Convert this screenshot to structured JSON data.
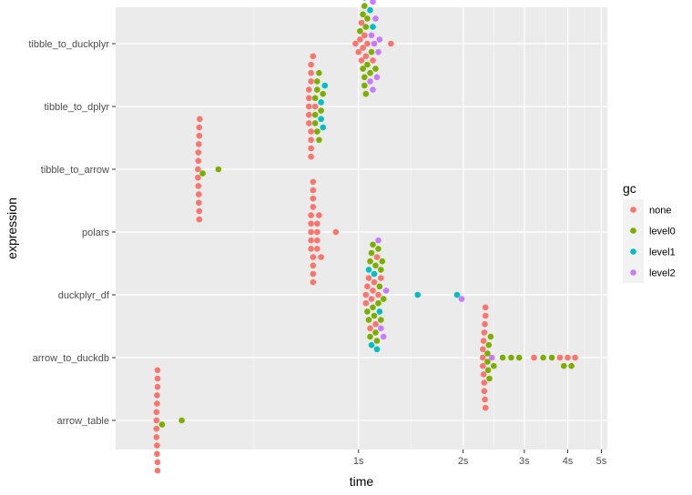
{
  "chart_data": {
    "type": "scatter",
    "style": "beeswarm",
    "xlabel": "time",
    "ylabel": "expression",
    "x_scale": "log",
    "x_unit": "seconds",
    "xlim": [
      0.2,
      5.2
    ],
    "x_ticks": [
      {
        "value": 1,
        "label": "1s"
      },
      {
        "value": 2,
        "label": "2s"
      },
      {
        "value": 3,
        "label": "3s"
      },
      {
        "value": 4,
        "label": "4s"
      },
      {
        "value": 5,
        "label": "5s"
      }
    ],
    "categories": [
      "tibble_to_duckplyr",
      "tibble_to_dplyr",
      "tibble_to_arrow",
      "polars",
      "duckplyr_df",
      "arrow_to_duckdb",
      "arrow_table"
    ],
    "grid": true,
    "legend": {
      "title": "gc",
      "position": "right",
      "entries": [
        {
          "name": "none",
          "color": "#F8766D"
        },
        {
          "name": "level0",
          "color": "#7CAE00"
        },
        {
          "name": "level1",
          "color": "#00BFC4"
        },
        {
          "name": "level2",
          "color": "#C77CFF"
        }
      ]
    },
    "series": [
      {
        "category": "tibble_to_duckplyr",
        "points": [
          {
            "x": 1.01,
            "gc": "none"
          },
          {
            "x": 1.02,
            "gc": "none"
          },
          {
            "x": 1.04,
            "gc": "none"
          },
          {
            "x": 1.05,
            "gc": "none"
          },
          {
            "x": 1.06,
            "gc": "none"
          },
          {
            "x": 1.03,
            "gc": "none"
          },
          {
            "x": 1.0,
            "gc": "none"
          },
          {
            "x": 0.98,
            "gc": "none"
          },
          {
            "x": 1.07,
            "gc": "none"
          },
          {
            "x": 1.1,
            "gc": "none"
          },
          {
            "x": 1.24,
            "gc": "none"
          },
          {
            "x": 1.02,
            "gc": "none"
          },
          {
            "x": 1.03,
            "gc": "level0"
          },
          {
            "x": 1.04,
            "gc": "level0"
          },
          {
            "x": 1.05,
            "gc": "level0"
          },
          {
            "x": 1.06,
            "gc": "level0"
          },
          {
            "x": 1.07,
            "gc": "level0"
          },
          {
            "x": 1.01,
            "gc": "level0"
          },
          {
            "x": 1.08,
            "gc": "level0"
          },
          {
            "x": 1.04,
            "gc": "level0"
          },
          {
            "x": 1.05,
            "gc": "level0"
          },
          {
            "x": 1.09,
            "gc": "level0"
          },
          {
            "x": 1.12,
            "gc": "level0"
          },
          {
            "x": 1.03,
            "gc": "level0"
          },
          {
            "x": 1.06,
            "gc": "level0"
          },
          {
            "x": 1.04,
            "gc": "level0"
          },
          {
            "x": 1.05,
            "gc": "level1"
          },
          {
            "x": 1.06,
            "gc": "level1"
          },
          {
            "x": 1.07,
            "gc": "level1"
          },
          {
            "x": 1.08,
            "gc": "level1"
          },
          {
            "x": 1.04,
            "gc": "level1"
          },
          {
            "x": 1.1,
            "gc": "level1"
          },
          {
            "x": 1.08,
            "gc": "level2"
          },
          {
            "x": 1.1,
            "gc": "level2"
          },
          {
            "x": 1.12,
            "gc": "level2"
          },
          {
            "x": 1.14,
            "gc": "level2"
          },
          {
            "x": 1.09,
            "gc": "level2"
          },
          {
            "x": 1.11,
            "gc": "level2"
          },
          {
            "x": 1.07,
            "gc": "level2"
          },
          {
            "x": 1.13,
            "gc": "level2"
          },
          {
            "x": 1.15,
            "gc": "level2"
          },
          {
            "x": 1.1,
            "gc": "level2"
          }
        ]
      },
      {
        "category": "tibble_to_dplyr",
        "points": [
          {
            "x": 0.72,
            "gc": "none"
          },
          {
            "x": 0.73,
            "gc": "none"
          },
          {
            "x": 0.74,
            "gc": "none"
          },
          {
            "x": 0.72,
            "gc": "none"
          },
          {
            "x": 0.73,
            "gc": "none"
          },
          {
            "x": 0.74,
            "gc": "none"
          },
          {
            "x": 0.75,
            "gc": "none"
          },
          {
            "x": 0.72,
            "gc": "none"
          },
          {
            "x": 0.73,
            "gc": "none"
          },
          {
            "x": 0.74,
            "gc": "none"
          },
          {
            "x": 0.73,
            "gc": "none"
          },
          {
            "x": 0.72,
            "gc": "none"
          },
          {
            "x": 0.74,
            "gc": "none"
          },
          {
            "x": 0.73,
            "gc": "none"
          },
          {
            "x": 0.72,
            "gc": "none"
          },
          {
            "x": 0.73,
            "gc": "none"
          },
          {
            "x": 0.74,
            "gc": "none"
          },
          {
            "x": 0.73,
            "gc": "none"
          },
          {
            "x": 0.75,
            "gc": "level0"
          },
          {
            "x": 0.76,
            "gc": "level0"
          },
          {
            "x": 0.77,
            "gc": "level0"
          },
          {
            "x": 0.75,
            "gc": "level0"
          },
          {
            "x": 0.76,
            "gc": "level0"
          },
          {
            "x": 0.78,
            "gc": "level0"
          },
          {
            "x": 0.77,
            "gc": "level0"
          },
          {
            "x": 0.75,
            "gc": "level0"
          },
          {
            "x": 0.79,
            "gc": "level0"
          },
          {
            "x": 0.76,
            "gc": "level0"
          },
          {
            "x": 0.78,
            "gc": "level1"
          },
          {
            "x": 0.79,
            "gc": "level1"
          },
          {
            "x": 0.8,
            "gc": "level1"
          },
          {
            "x": 0.78,
            "gc": "level1"
          }
        ]
      },
      {
        "category": "tibble_to_arrow",
        "points": [
          {
            "x": 0.345,
            "gc": "none"
          },
          {
            "x": 0.348,
            "gc": "none"
          },
          {
            "x": 0.35,
            "gc": "none"
          },
          {
            "x": 0.346,
            "gc": "none"
          },
          {
            "x": 0.349,
            "gc": "none"
          },
          {
            "x": 0.351,
            "gc": "none"
          },
          {
            "x": 0.347,
            "gc": "none"
          },
          {
            "x": 0.352,
            "gc": "none"
          },
          {
            "x": 0.345,
            "gc": "none"
          },
          {
            "x": 0.349,
            "gc": "none"
          },
          {
            "x": 0.35,
            "gc": "none"
          },
          {
            "x": 0.348,
            "gc": "none"
          },
          {
            "x": 0.346,
            "gc": "none"
          },
          {
            "x": 0.351,
            "gc": "none"
          },
          {
            "x": 0.347,
            "gc": "none"
          },
          {
            "x": 0.349,
            "gc": "none"
          },
          {
            "x": 0.352,
            "gc": "none"
          },
          {
            "x": 0.348,
            "gc": "none"
          },
          {
            "x": 0.35,
            "gc": "none"
          },
          {
            "x": 0.346,
            "gc": "none"
          },
          {
            "x": 0.349,
            "gc": "none"
          },
          {
            "x": 0.347,
            "gc": "none"
          },
          {
            "x": 0.351,
            "gc": "none"
          },
          {
            "x": 0.348,
            "gc": "none"
          },
          {
            "x": 0.356,
            "gc": "level0"
          },
          {
            "x": 0.395,
            "gc": "level0"
          }
        ]
      },
      {
        "category": "polars",
        "points": [
          {
            "x": 0.73,
            "gc": "none"
          },
          {
            "x": 0.74,
            "gc": "none"
          },
          {
            "x": 0.75,
            "gc": "none"
          },
          {
            "x": 0.73,
            "gc": "none"
          },
          {
            "x": 0.74,
            "gc": "none"
          },
          {
            "x": 0.76,
            "gc": "none"
          },
          {
            "x": 0.75,
            "gc": "none"
          },
          {
            "x": 0.73,
            "gc": "none"
          },
          {
            "x": 0.74,
            "gc": "none"
          },
          {
            "x": 0.75,
            "gc": "none"
          },
          {
            "x": 0.76,
            "gc": "none"
          },
          {
            "x": 0.74,
            "gc": "none"
          },
          {
            "x": 0.73,
            "gc": "none"
          },
          {
            "x": 0.75,
            "gc": "none"
          },
          {
            "x": 0.74,
            "gc": "none"
          },
          {
            "x": 0.76,
            "gc": "none"
          },
          {
            "x": 0.77,
            "gc": "none"
          },
          {
            "x": 0.74,
            "gc": "none"
          },
          {
            "x": 0.75,
            "gc": "none"
          },
          {
            "x": 0.73,
            "gc": "none"
          },
          {
            "x": 0.74,
            "gc": "none"
          },
          {
            "x": 0.75,
            "gc": "none"
          },
          {
            "x": 0.76,
            "gc": "none"
          },
          {
            "x": 0.78,
            "gc": "none"
          },
          {
            "x": 0.75,
            "gc": "none"
          },
          {
            "x": 0.74,
            "gc": "none"
          },
          {
            "x": 0.86,
            "gc": "none"
          }
        ]
      },
      {
        "category": "duckplyr_df",
        "points": [
          {
            "x": 1.05,
            "gc": "none"
          },
          {
            "x": 1.06,
            "gc": "none"
          },
          {
            "x": 1.08,
            "gc": "none"
          },
          {
            "x": 1.1,
            "gc": "none"
          },
          {
            "x": 1.07,
            "gc": "none"
          },
          {
            "x": 1.12,
            "gc": "none"
          },
          {
            "x": 1.14,
            "gc": "none"
          },
          {
            "x": 1.09,
            "gc": "none"
          },
          {
            "x": 1.11,
            "gc": "none"
          },
          {
            "x": 1.16,
            "gc": "none"
          },
          {
            "x": 1.05,
            "gc": "none"
          },
          {
            "x": 1.13,
            "gc": "none"
          },
          {
            "x": 1.06,
            "gc": "level0"
          },
          {
            "x": 1.08,
            "gc": "level0"
          },
          {
            "x": 1.1,
            "gc": "level0"
          },
          {
            "x": 1.12,
            "gc": "level0"
          },
          {
            "x": 1.14,
            "gc": "level0"
          },
          {
            "x": 1.16,
            "gc": "level0"
          },
          {
            "x": 1.11,
            "gc": "level0"
          },
          {
            "x": 1.09,
            "gc": "level0"
          },
          {
            "x": 1.13,
            "gc": "level0"
          },
          {
            "x": 1.18,
            "gc": "level0"
          },
          {
            "x": 1.15,
            "gc": "level0"
          },
          {
            "x": 1.07,
            "gc": "level0"
          },
          {
            "x": 1.12,
            "gc": "level0"
          },
          {
            "x": 1.17,
            "gc": "level0"
          },
          {
            "x": 1.1,
            "gc": "level0"
          },
          {
            "x": 1.14,
            "gc": "level0"
          },
          {
            "x": 1.08,
            "gc": "level0"
          },
          {
            "x": 1.16,
            "gc": "level0"
          },
          {
            "x": 1.09,
            "gc": "level1"
          },
          {
            "x": 1.11,
            "gc": "level1"
          },
          {
            "x": 1.13,
            "gc": "level1"
          },
          {
            "x": 1.15,
            "gc": "level1"
          },
          {
            "x": 1.07,
            "gc": "level1"
          },
          {
            "x": 1.12,
            "gc": "level1"
          },
          {
            "x": 1.48,
            "gc": "level1"
          },
          {
            "x": 1.92,
            "gc": "level1"
          },
          {
            "x": 1.1,
            "gc": "level2"
          },
          {
            "x": 1.12,
            "gc": "level2"
          },
          {
            "x": 1.14,
            "gc": "level2"
          },
          {
            "x": 1.16,
            "gc": "level2"
          },
          {
            "x": 1.18,
            "gc": "level2"
          },
          {
            "x": 1.2,
            "gc": "level2"
          },
          {
            "x": 1.13,
            "gc": "level2"
          },
          {
            "x": 1.98,
            "gc": "level2"
          }
        ]
      },
      {
        "category": "arrow_to_duckdb",
        "points": [
          {
            "x": 2.28,
            "gc": "none"
          },
          {
            "x": 2.3,
            "gc": "none"
          },
          {
            "x": 2.32,
            "gc": "none"
          },
          {
            "x": 2.29,
            "gc": "none"
          },
          {
            "x": 2.31,
            "gc": "none"
          },
          {
            "x": 2.33,
            "gc": "none"
          },
          {
            "x": 2.28,
            "gc": "none"
          },
          {
            "x": 2.3,
            "gc": "none"
          },
          {
            "x": 2.32,
            "gc": "none"
          },
          {
            "x": 2.29,
            "gc": "none"
          },
          {
            "x": 2.31,
            "gc": "none"
          },
          {
            "x": 2.34,
            "gc": "none"
          },
          {
            "x": 2.3,
            "gc": "none"
          },
          {
            "x": 2.28,
            "gc": "none"
          },
          {
            "x": 2.32,
            "gc": "none"
          },
          {
            "x": 3.2,
            "gc": "none"
          },
          {
            "x": 3.8,
            "gc": "none"
          },
          {
            "x": 4.0,
            "gc": "none"
          },
          {
            "x": 4.2,
            "gc": "none"
          },
          {
            "x": 2.33,
            "gc": "level0"
          },
          {
            "x": 2.36,
            "gc": "level0"
          },
          {
            "x": 2.38,
            "gc": "level0"
          },
          {
            "x": 2.34,
            "gc": "level0"
          },
          {
            "x": 2.4,
            "gc": "level0"
          },
          {
            "x": 2.35,
            "gc": "level0"
          },
          {
            "x": 2.37,
            "gc": "level0"
          },
          {
            "x": 2.45,
            "gc": "level0"
          },
          {
            "x": 2.6,
            "gc": "level0"
          },
          {
            "x": 2.75,
            "gc": "level0"
          },
          {
            "x": 2.9,
            "gc": "level0"
          },
          {
            "x": 3.4,
            "gc": "level0"
          },
          {
            "x": 3.6,
            "gc": "level0"
          },
          {
            "x": 3.9,
            "gc": "level0"
          },
          {
            "x": 4.1,
            "gc": "level0"
          },
          {
            "x": 2.35,
            "gc": "level0"
          },
          {
            "x": 2.42,
            "gc": "level2"
          }
        ]
      },
      {
        "category": "arrow_table",
        "points": [
          {
            "x": 0.262,
            "gc": "none"
          },
          {
            "x": 0.264,
            "gc": "none"
          },
          {
            "x": 0.266,
            "gc": "none"
          },
          {
            "x": 0.263,
            "gc": "none"
          },
          {
            "x": 0.265,
            "gc": "none"
          },
          {
            "x": 0.267,
            "gc": "none"
          },
          {
            "x": 0.262,
            "gc": "none"
          },
          {
            "x": 0.264,
            "gc": "none"
          },
          {
            "x": 0.266,
            "gc": "none"
          },
          {
            "x": 0.263,
            "gc": "none"
          },
          {
            "x": 0.265,
            "gc": "none"
          },
          {
            "x": 0.268,
            "gc": "none"
          },
          {
            "x": 0.264,
            "gc": "none"
          },
          {
            "x": 0.262,
            "gc": "none"
          },
          {
            "x": 0.266,
            "gc": "none"
          },
          {
            "x": 0.263,
            "gc": "none"
          },
          {
            "x": 0.265,
            "gc": "none"
          },
          {
            "x": 0.267,
            "gc": "none"
          },
          {
            "x": 0.264,
            "gc": "none"
          },
          {
            "x": 0.266,
            "gc": "none"
          },
          {
            "x": 0.263,
            "gc": "none"
          },
          {
            "x": 0.265,
            "gc": "none"
          },
          {
            "x": 0.262,
            "gc": "none"
          },
          {
            "x": 0.264,
            "gc": "none"
          },
          {
            "x": 0.266,
            "gc": "none"
          },
          {
            "x": 0.268,
            "gc": "none"
          },
          {
            "x": 0.272,
            "gc": "level0"
          },
          {
            "x": 0.31,
            "gc": "level0"
          }
        ]
      }
    ]
  }
}
